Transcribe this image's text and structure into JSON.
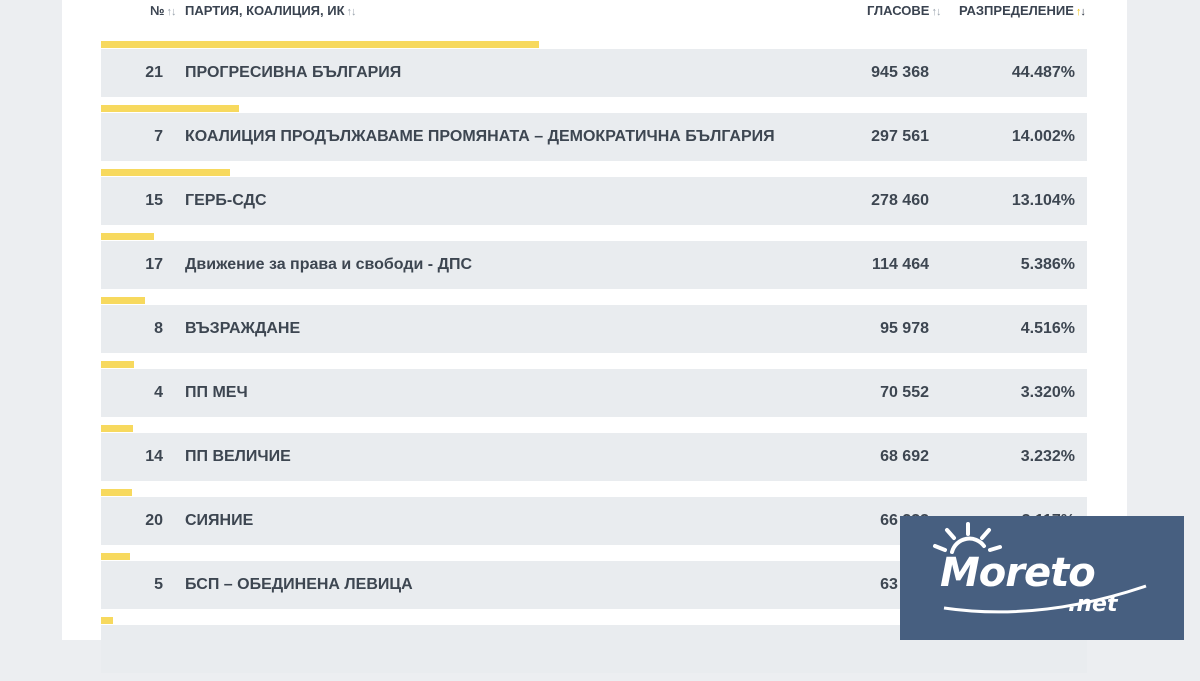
{
  "columns": {
    "number": "№",
    "party": "ПАРТИЯ, КОАЛИЦИЯ, ИК",
    "votes": "ГЛАСОВЕ",
    "distribution": "РАЗПРЕДЕЛЕНИЕ"
  },
  "rows": [
    {
      "num": "21",
      "name": "ПРОГРЕСИВНА БЪЛГАРИЯ",
      "votes": "945 368",
      "pct": "44.487%",
      "share": 44.487
    },
    {
      "num": "7",
      "name": "КОАЛИЦИЯ ПРОДЪЛЖАВАМЕ ПРОМЯНАТА – ДЕМОКРАТИЧНА БЪЛГАРИЯ",
      "votes": "297 561",
      "pct": "14.002%",
      "share": 14.002
    },
    {
      "num": "15",
      "name": "ГЕРБ-СДС",
      "votes": "278 460",
      "pct": "13.104%",
      "share": 13.104
    },
    {
      "num": "17",
      "name": "Движение за права и свободи - ДПС",
      "votes": "114 464",
      "pct": "5.386%",
      "share": 5.386
    },
    {
      "num": "8",
      "name": "ВЪЗРАЖДАНЕ",
      "votes": "95 978",
      "pct": "4.516%",
      "share": 4.516
    },
    {
      "num": "4",
      "name": "ПП МЕЧ",
      "votes": "70 552",
      "pct": "3.320%",
      "share": 3.32
    },
    {
      "num": "14",
      "name": "ПП ВЕЛИЧИЕ",
      "votes": "68 692",
      "pct": "3.232%",
      "share": 3.232
    },
    {
      "num": "20",
      "name": "СИЯНИЕ",
      "votes": "66 233",
      "pct": "3.117%",
      "share": 3.117
    },
    {
      "num": "5",
      "name": "БСП – ОБЕДИНЕНА ЛЕВИЦА",
      "votes": "63 492",
      "pct": "",
      "share": 2.99
    },
    {
      "num": "",
      "name": "",
      "votes": "",
      "pct": "",
      "share": 1.2
    }
  ],
  "watermark": {
    "brand": "Moreto",
    "suffix": ".net"
  },
  "colors": {
    "bar": "#f7d95e",
    "row_bg": "#e9ecef",
    "text": "#3d4651",
    "logo_bg": "#475f80"
  }
}
